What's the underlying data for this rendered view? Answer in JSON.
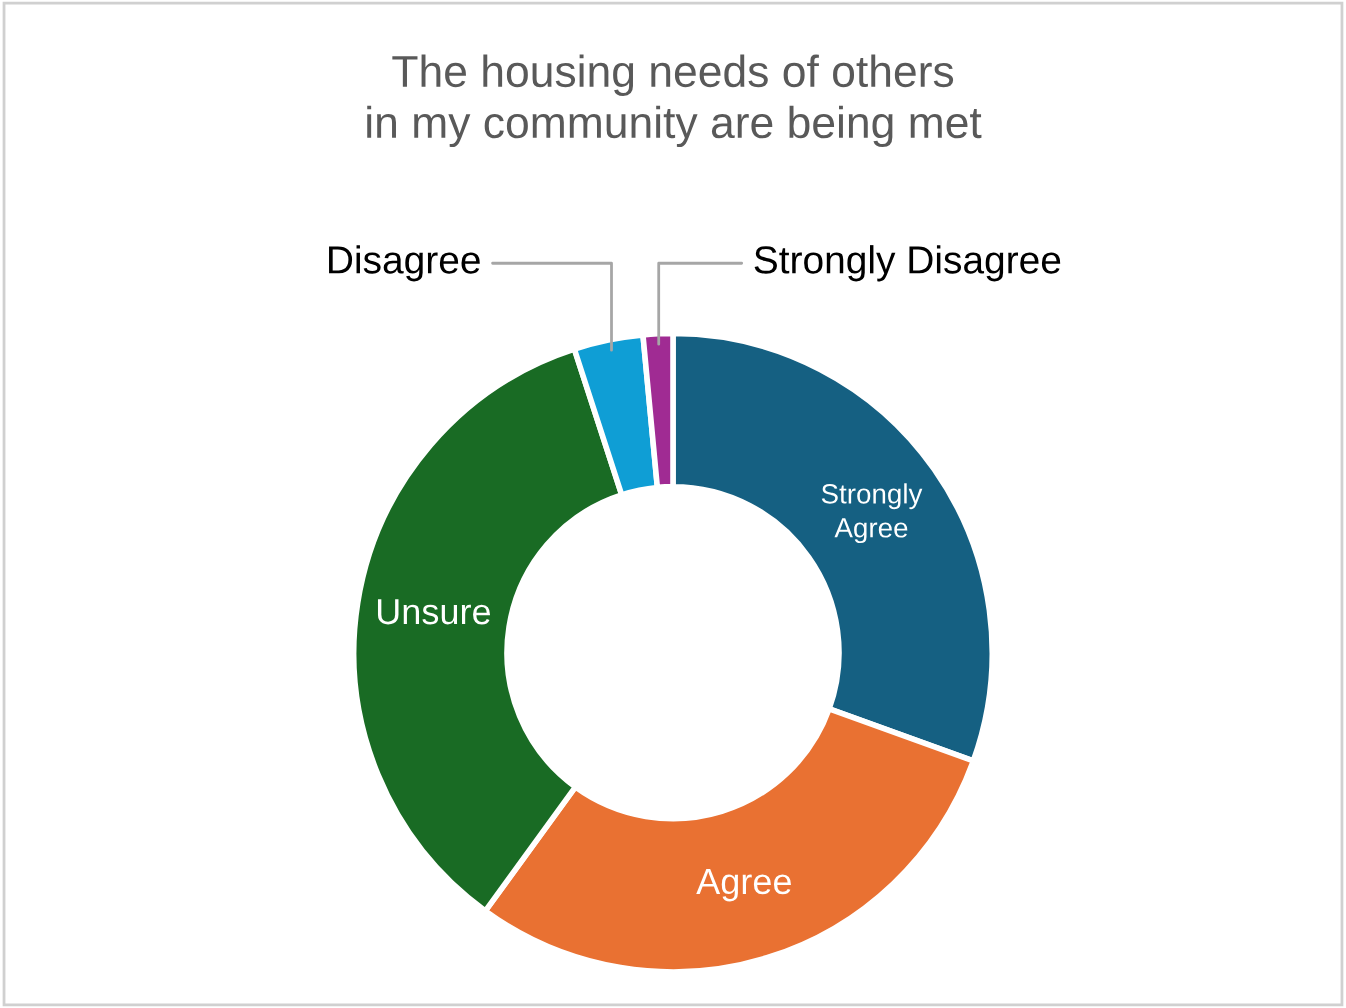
{
  "chart_data": {
    "type": "donut",
    "title": "The housing needs of others in my community are being met",
    "categories": [
      "Strongly Agree",
      "Agree",
      "Unsure",
      "Disagree",
      "Strongly Disagree"
    ],
    "values": [
      30.5,
      29.5,
      35,
      3.5,
      1.5
    ],
    "colors": [
      "#156082",
      "#e97132",
      "#196b24",
      "#0f9ed5",
      "#a02b93"
    ],
    "legend": false
  }
}
